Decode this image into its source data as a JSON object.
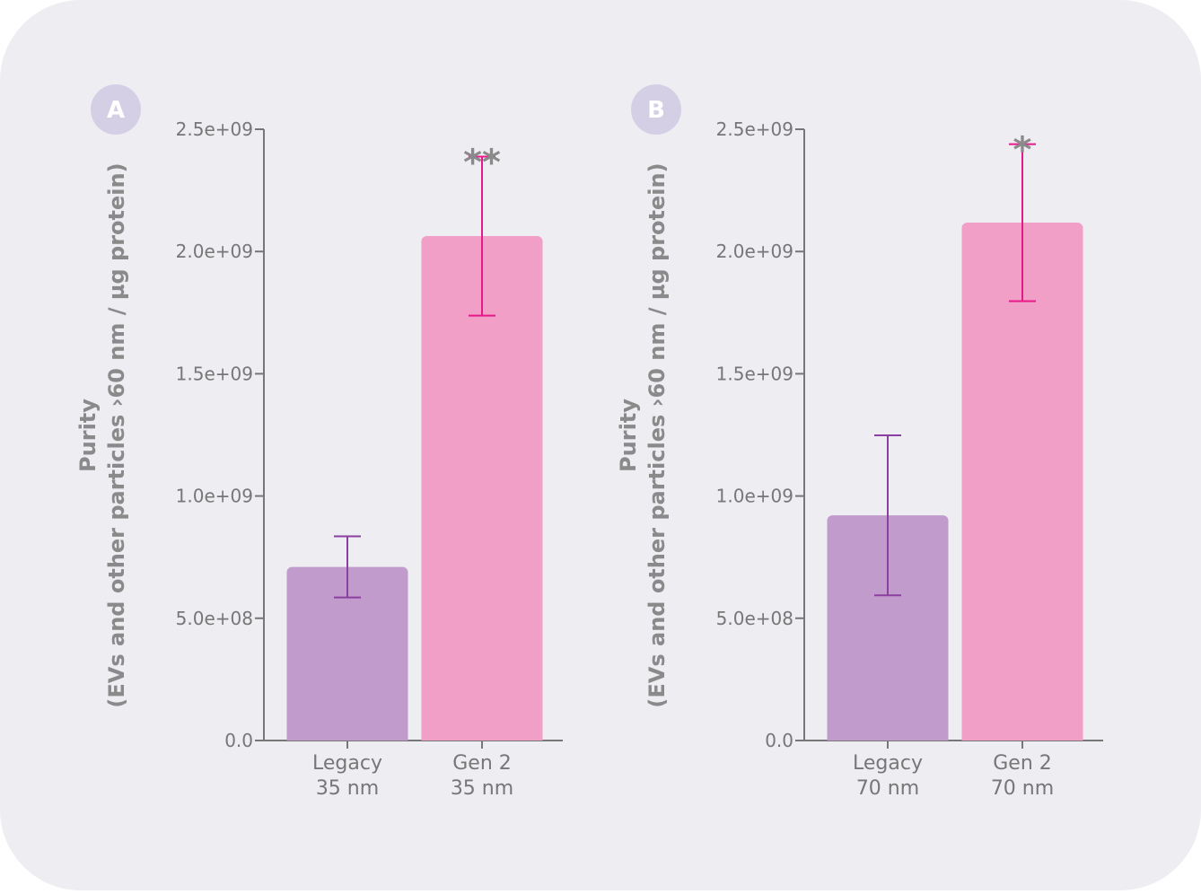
{
  "chart_data": [
    {
      "type": "bar",
      "panel": "A",
      "y_label": [
        "Purity",
        "(EVs and other particles ›60 nm / µg protein)"
      ],
      "categories": [
        "Legacy\n35 nm",
        "Gen 2\n35 nm"
      ],
      "values": [
        710000000,
        2063000000
      ],
      "errors": [
        125000000,
        325000000
      ],
      "colors": [
        "#c09bcb",
        "#f29fc8"
      ],
      "error_colors": [
        "#8b3fa0",
        "#e5198a"
      ],
      "significance": [
        null,
        "**"
      ],
      "ylim": [
        0,
        2500000000
      ],
      "yticks": [
        {
          "value": 0,
          "label": "0.0"
        },
        {
          "value": 500000000,
          "label": "5.0e+08"
        },
        {
          "value": 1000000000,
          "label": "1.0e+09"
        },
        {
          "value": 1500000000,
          "label": "1.5e+09"
        },
        {
          "value": 2000000000,
          "label": "2.0e+09"
        },
        {
          "value": 2500000000,
          "label": "2.5e+09"
        }
      ]
    },
    {
      "type": "bar",
      "panel": "B",
      "y_label": [
        "Purity",
        "(EVs and other particles ›60 nm / µg protein)"
      ],
      "categories": [
        "Legacy\n70 nm",
        "Gen 2\n70 nm"
      ],
      "values": [
        921000000,
        2118000000
      ],
      "errors": [
        327000000,
        321000000
      ],
      "colors": [
        "#c09bcb",
        "#f29fc8"
      ],
      "error_colors": [
        "#8b3fa0",
        "#e5198a"
      ],
      "significance": [
        null,
        "*"
      ],
      "ylim": [
        0,
        2500000000
      ],
      "yticks": [
        {
          "value": 0,
          "label": "0.0"
        },
        {
          "value": 500000000,
          "label": "5.0e+08"
        },
        {
          "value": 1000000000,
          "label": "1.0e+09"
        },
        {
          "value": 1500000000,
          "label": "1.5e+09"
        },
        {
          "value": 2000000000,
          "label": "2.0e+09"
        },
        {
          "value": 2500000000,
          "label": "2.5e+09"
        }
      ]
    }
  ]
}
